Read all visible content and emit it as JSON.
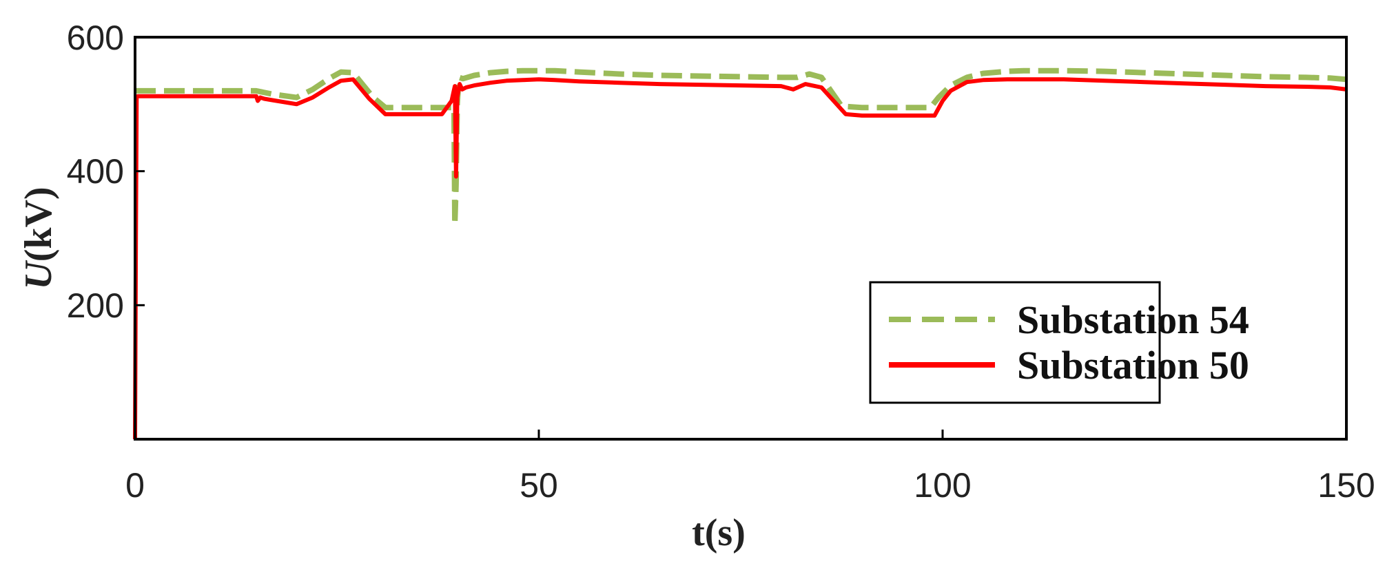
{
  "chart_data": {
    "type": "line",
    "xlabel": "t(s)",
    "ylabel_main": "U",
    "ylabel_unit": "(kV)",
    "xlim": [
      0,
      150
    ],
    "ylim": [
      0,
      600
    ],
    "xticks": [
      0,
      50,
      100,
      150
    ],
    "xtick_labels": [
      "0",
      "50",
      "100",
      "150"
    ],
    "yticks": [
      200,
      400,
      600
    ],
    "ytick_labels": [
      "200",
      "400",
      "600"
    ],
    "grid": false,
    "legend_position": "bottom-right",
    "series": [
      {
        "name": "Substation 54",
        "color": "#9bbb59",
        "style": "dashed",
        "x": [
          0,
          0.2,
          0.3,
          5,
          10,
          15,
          17,
          20,
          22,
          24,
          25.5,
          27,
          29.5,
          31,
          35,
          38,
          39.5,
          39.6,
          39.75,
          39.9,
          40.1,
          40.6,
          42,
          44,
          46,
          48,
          50,
          52,
          55,
          60,
          65,
          70,
          75,
          80,
          82,
          83.5,
          85,
          87.5,
          90,
          95,
          98.5,
          99.5,
          101,
          103,
          105,
          108,
          110,
          115,
          120,
          125,
          130,
          135,
          140,
          145,
          148,
          150
        ],
        "y": [
          520,
          520,
          520,
          520,
          520,
          520,
          515,
          510,
          522,
          538,
          548,
          547,
          510,
          495,
          495,
          495,
          495,
          320,
          380,
          500,
          540,
          538,
          543,
          547,
          549,
          550,
          550,
          550,
          548,
          545,
          543,
          542,
          541,
          540,
          540,
          545,
          540,
          497,
          495,
          495,
          495,
          510,
          528,
          540,
          546,
          549,
          550,
          550,
          549,
          547,
          545,
          543,
          541,
          540,
          539,
          537
        ]
      },
      {
        "name": "Substation 50",
        "color": "#ff0000",
        "style": "solid",
        "x": [
          0,
          0.1,
          0.2,
          0.3,
          5,
          10,
          15,
          15.2,
          15.5,
          16,
          17,
          20,
          22,
          24,
          25.5,
          27,
          29,
          31,
          35,
          38,
          39.2,
          39.6,
          39.75,
          39.9,
          40.2,
          40.5,
          41,
          42,
          44,
          46,
          48,
          50,
          52,
          55,
          60,
          65,
          70,
          75,
          80,
          81.5,
          83,
          85,
          88,
          90,
          95,
          99,
          100,
          101,
          103,
          105,
          108,
          110,
          115,
          120,
          125,
          130,
          135,
          140,
          145,
          148,
          150
        ],
        "y": [
          0,
          300,
          510,
          512,
          512,
          512,
          512,
          505,
          510,
          508,
          506,
          500,
          510,
          525,
          535,
          537,
          508,
          485,
          485,
          485,
          505,
          527,
          392,
          510,
          530,
          522,
          525,
          528,
          532,
          535,
          536,
          537,
          536,
          534,
          532,
          530,
          529,
          528,
          527,
          522,
          530,
          525,
          485,
          483,
          483,
          483,
          505,
          520,
          533,
          536,
          537,
          537,
          537,
          535,
          533,
          531,
          529,
          527,
          526,
          525,
          522
        ]
      }
    ]
  }
}
